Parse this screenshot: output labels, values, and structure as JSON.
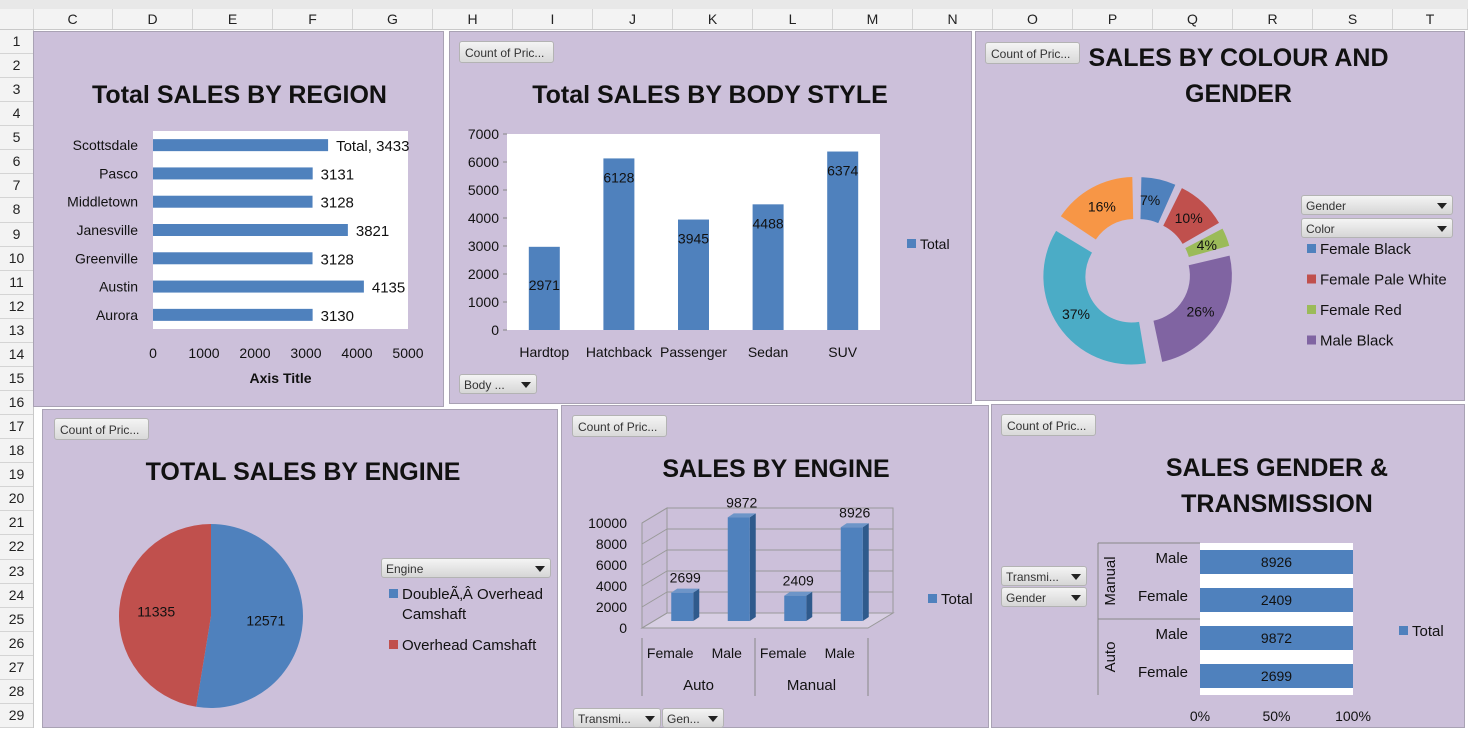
{
  "spreadsheet": {
    "columns": [
      "C",
      "D",
      "E",
      "F",
      "G",
      "H",
      "I",
      "J",
      "K",
      "L",
      "M",
      "N",
      "O",
      "P",
      "Q",
      "R",
      "S",
      "T"
    ],
    "rows": [
      "1",
      "2",
      "3",
      "4",
      "5",
      "6",
      "7",
      "8",
      "9",
      "10",
      "11",
      "12",
      "13",
      "14",
      "15",
      "16",
      "17",
      "18",
      "19",
      "20",
      "21",
      "22",
      "23",
      "24",
      "25",
      "26",
      "27",
      "28",
      "29"
    ]
  },
  "colors": {
    "panel_bg": "#ccc0da",
    "bar_blue": "#4f81bd",
    "red": "#c0504d",
    "green": "#9bbb59",
    "purple": "#8064a2",
    "teal": "#4bacc6",
    "orange": "#f79646"
  },
  "panels": {
    "region": {
      "title": "Total SALES BY REGION"
    },
    "body_style": {
      "title": "Total SALES BY BODY STYLE",
      "field_button": "Count of Pric...",
      "filter_button": "Body ..."
    },
    "colour_gender": {
      "title_line1": "SALES BY COLOUR AND",
      "title_line2": "GENDER",
      "field_button": "Count of Pric...",
      "filter_gender": "Gender",
      "filter_color": "Color"
    },
    "engine_pie": {
      "title": "TOTAL SALES BY ENGINE",
      "field_button": "Count of Pric...",
      "filter_engine": "Engine"
    },
    "engine_3d": {
      "title": "SALES BY ENGINE",
      "field_button": "Count of Pric...",
      "filter_transmission": "Transmi...",
      "filter_gender": "Gen..."
    },
    "gender_transmission": {
      "title_line1": "SALES GENDER &",
      "title_line2": "TRANSMISSION",
      "field_button": "Count of Pric...",
      "filter_transmission": "Transmi...",
      "filter_gender": "Gender"
    }
  },
  "chart_data": [
    {
      "type": "bar",
      "orientation": "horizontal",
      "title": "Total SALES BY REGION",
      "categories": [
        "Scottsdale",
        "Pasco",
        "Middletown",
        "Janesville",
        "Greenville",
        "Austin",
        "Aurora"
      ],
      "series": [
        {
          "name": "Total",
          "values": [
            3433,
            3131,
            3128,
            3821,
            3128,
            4135,
            3130
          ]
        }
      ],
      "data_labels": [
        "Total, 3433",
        "3131",
        "3128",
        "3821",
        "3128",
        "4135",
        "3130"
      ],
      "xlabel": "Axis Title",
      "xlim": [
        0,
        5000
      ],
      "xticks": [
        "0",
        "1000",
        "2000",
        "3000",
        "4000",
        "5000"
      ]
    },
    {
      "type": "bar",
      "title": "Total SALES BY BODY STYLE",
      "categories": [
        "Hardtop",
        "Hatchback",
        "Passenger",
        "Sedan",
        "SUV"
      ],
      "series": [
        {
          "name": "Total",
          "values": [
            2971,
            6128,
            3945,
            4488,
            6374
          ]
        }
      ],
      "legend": [
        "Total"
      ],
      "legend_position": "right",
      "ylim": [
        0,
        7000
      ],
      "yticks": [
        "0",
        "1000",
        "2000",
        "3000",
        "4000",
        "5000",
        "6000",
        "7000"
      ]
    },
    {
      "type": "pie",
      "style": "doughnut",
      "title": "SALES BY COLOUR AND GENDER",
      "slices": [
        {
          "label": "Female Black",
          "percent": 7,
          "text": "7%",
          "color": "#4f81bd"
        },
        {
          "label": "Female Pale White",
          "percent": 10,
          "text": "10%",
          "color": "#c0504d"
        },
        {
          "label": "Female Red",
          "percent": 4,
          "text": "4%",
          "color": "#9bbb59"
        },
        {
          "label": "Male Black",
          "percent": 26,
          "text": "26%",
          "color": "#8064a2"
        },
        {
          "label": "",
          "percent": 37,
          "text": "37%",
          "color": "#4bacc6"
        },
        {
          "label": "",
          "percent": 16,
          "text": "16%",
          "color": "#f79646"
        }
      ],
      "legend": [
        "Female Black",
        "Female Pale White",
        "Female Red",
        "Male Black"
      ],
      "legend_position": "right"
    },
    {
      "type": "pie",
      "title": "TOTAL SALES BY ENGINE",
      "slices": [
        {
          "label": "DoubleÃ‚Â Overhead Camshaft",
          "value": 12571,
          "text": "12571",
          "color": "#4f81bd"
        },
        {
          "label": "Overhead Camshaft",
          "value": 11335,
          "text": "11335",
          "color": "#c0504d"
        }
      ],
      "legend": [
        "DoubleÃ‚Â Overhead Camshaft",
        "Overhead Camshaft"
      ],
      "legend_position": "right"
    },
    {
      "type": "bar",
      "style": "3d-column",
      "title": "SALES BY ENGINE",
      "groups": [
        "Auto",
        "Manual"
      ],
      "categories": [
        "Female",
        "Male",
        "Female",
        "Male"
      ],
      "series": [
        {
          "name": "Total",
          "values": [
            2699,
            9872,
            2409,
            8926
          ]
        }
      ],
      "legend": [
        "Total"
      ],
      "legend_position": "right",
      "ylim": [
        0,
        10000
      ],
      "yticks": [
        "0",
        "2000",
        "4000",
        "6000",
        "8000",
        "10000"
      ]
    },
    {
      "type": "bar",
      "orientation": "horizontal",
      "style": "100%-stacked",
      "title": "SALES GENDER & TRANSMISSION",
      "groups": [
        "Manual",
        "Auto"
      ],
      "categories": [
        "Male",
        "Female",
        "Male",
        "Female"
      ],
      "series": [
        {
          "name": "Total",
          "values": [
            8926,
            2409,
            9872,
            2699
          ]
        }
      ],
      "legend": [
        "Total"
      ],
      "legend_position": "right",
      "xticks": [
        "0%",
        "50%",
        "100%"
      ]
    }
  ]
}
